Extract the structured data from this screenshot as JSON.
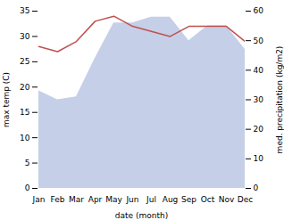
{
  "chart_data": {
    "type": "line",
    "xlabel": "date (month)",
    "ylabel": "max temp (C)",
    "y2label": "med. precipitation (kg/m2)",
    "categories": [
      "Jan",
      "Feb",
      "Mar",
      "Apr",
      "May",
      "Jun",
      "Jul",
      "Aug",
      "Sep",
      "Oct",
      "Nov",
      "Dec"
    ],
    "series": [
      {
        "type": "area",
        "axis": "y2",
        "color": "#c5cfe8",
        "values": [
          33,
          30,
          31,
          44,
          56,
          56,
          58,
          58,
          50,
          55,
          55,
          47
        ]
      },
      {
        "type": "line",
        "color": "#c0504d",
        "values": [
          28,
          27,
          29,
          33,
          34,
          32,
          31,
          30,
          32,
          32,
          32,
          29
        ]
      }
    ],
    "ylim": [
      0,
      35
    ],
    "yticks": [
      0,
      5,
      10,
      15,
      20,
      25,
      30,
      35
    ],
    "y2lim": [
      0,
      60
    ],
    "y2ticks": [
      0,
      10,
      20,
      30,
      40,
      50,
      60
    ],
    "grid": false
  }
}
